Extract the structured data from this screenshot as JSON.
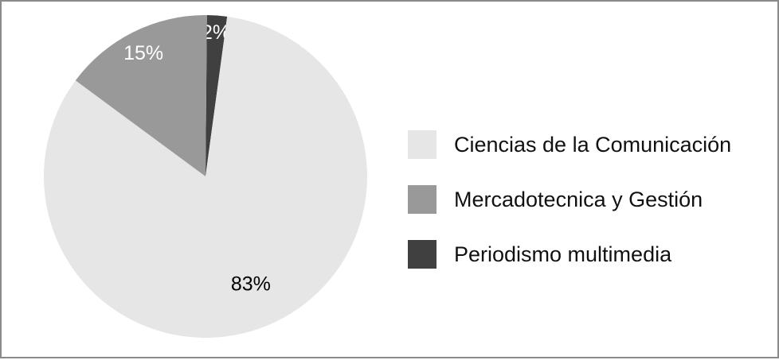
{
  "chart_data": {
    "type": "pie",
    "slices": [
      {
        "label": "Ciencias de la Comunicación",
        "value": 83,
        "display": "83%",
        "color": "#e6e6e6"
      },
      {
        "label": "Mercadotecnica y Gestión",
        "value": 15,
        "display": "15%",
        "color": "#999999"
      },
      {
        "label": "Periodismo multimedia",
        "value": 2,
        "display": "2%",
        "color": "#404040"
      }
    ],
    "legend_position": "right"
  }
}
